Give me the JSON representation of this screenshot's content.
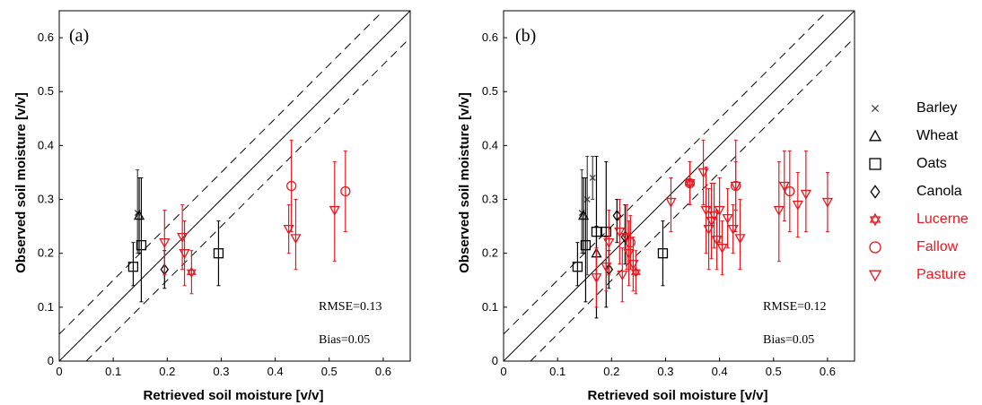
{
  "chart_data": [
    {
      "panel_label": "(a)",
      "type": "scatter",
      "xlabel": "Retrieved soil moisture [v/v]",
      "ylabel": "Observed soil moisture [v/v]",
      "xlim": [
        0,
        0.65
      ],
      "ylim": [
        0,
        0.65
      ],
      "xticks": [
        "0",
        "0.1",
        "0.2",
        "0.3",
        "0.4",
        "0.5",
        "0.6"
      ],
      "yticks": [
        "0",
        "0.1",
        "0.2",
        "0.3",
        "0.4",
        "0.5",
        "0.6"
      ],
      "grid": false,
      "reference_lines": [
        "1:1 line (solid)",
        "±0.05 (dashed)"
      ],
      "rmse_text": "RMSE=0.13",
      "bias_text": "Bias=0.05",
      "series": [
        {
          "name": "Barley",
          "points": [
            {
              "x": 0.145,
              "y": 0.275,
              "lo": 0.2,
              "hi": 0.355
            }
          ]
        },
        {
          "name": "Wheat",
          "points": [
            {
              "x": 0.148,
              "y": 0.27,
              "lo": 0.2,
              "hi": 0.34
            }
          ]
        },
        {
          "name": "Oats",
          "points": [
            {
              "x": 0.137,
              "y": 0.175,
              "lo": 0.14,
              "hi": 0.22
            },
            {
              "x": 0.152,
              "y": 0.215,
              "lo": 0.11,
              "hi": 0.34
            },
            {
              "x": 0.295,
              "y": 0.2,
              "lo": 0.14,
              "hi": 0.26
            }
          ]
        },
        {
          "name": "Canola",
          "points": [
            {
              "x": 0.195,
              "y": 0.17,
              "lo": 0.135,
              "hi": 0.205
            }
          ]
        },
        {
          "name": "Lucerne",
          "points": [
            {
              "x": 0.245,
              "y": 0.165,
              "lo": 0.125,
              "hi": 0.205
            }
          ]
        },
        {
          "name": "Fallow",
          "points": [
            {
              "x": 0.43,
              "y": 0.325,
              "lo": 0.24,
              "hi": 0.41
            },
            {
              "x": 0.53,
              "y": 0.315,
              "lo": 0.24,
              "hi": 0.39
            }
          ]
        },
        {
          "name": "Pasture",
          "points": [
            {
              "x": 0.195,
              "y": 0.22,
              "lo": 0.16,
              "hi": 0.28
            },
            {
              "x": 0.228,
              "y": 0.23,
              "lo": 0.17,
              "hi": 0.29
            },
            {
              "x": 0.232,
              "y": 0.2,
              "lo": 0.14,
              "hi": 0.26
            },
            {
              "x": 0.425,
              "y": 0.245,
              "lo": 0.2,
              "hi": 0.29
            },
            {
              "x": 0.438,
              "y": 0.228,
              "lo": 0.17,
              "hi": 0.3
            },
            {
              "x": 0.51,
              "y": 0.28,
              "lo": 0.185,
              "hi": 0.37
            }
          ]
        }
      ]
    },
    {
      "panel_label": "(b)",
      "type": "scatter",
      "xlabel": "Retrieved soil moisture [v/v]",
      "ylabel": "Observed soil moisture [v/v]",
      "xlim": [
        0,
        0.65
      ],
      "ylim": [
        0,
        0.65
      ],
      "xticks": [
        "0",
        "0.1",
        "0.2",
        "0.3",
        "0.4",
        "0.5",
        "0.6"
      ],
      "yticks": [
        "0",
        "0.1",
        "0.2",
        "0.3",
        "0.4",
        "0.5",
        "0.6"
      ],
      "grid": false,
      "reference_lines": [
        "1:1 line (solid)",
        "±0.05 (dashed)"
      ],
      "rmse_text": "RMSE=0.12",
      "bias_text": "Bias=0.05",
      "series": [
        {
          "name": "Barley",
          "points": [
            {
              "x": 0.145,
              "y": 0.275,
              "lo": 0.2,
              "hi": 0.355
            },
            {
              "x": 0.165,
              "y": 0.34,
              "lo": 0.3,
              "hi": 0.38
            },
            {
              "x": 0.155,
              "y": 0.3,
              "lo": 0.16,
              "hi": 0.38
            }
          ]
        },
        {
          "name": "Wheat",
          "points": [
            {
              "x": 0.148,
              "y": 0.27,
              "lo": 0.2,
              "hi": 0.34
            },
            {
              "x": 0.172,
              "y": 0.2,
              "lo": 0.15,
              "hi": 0.25
            }
          ]
        },
        {
          "name": "Oats",
          "points": [
            {
              "x": 0.137,
              "y": 0.175,
              "lo": 0.14,
              "hi": 0.22
            },
            {
              "x": 0.152,
              "y": 0.215,
              "lo": 0.11,
              "hi": 0.34
            },
            {
              "x": 0.172,
              "y": 0.24,
              "lo": 0.08,
              "hi": 0.38
            },
            {
              "x": 0.19,
              "y": 0.24,
              "lo": 0.1,
              "hi": 0.37
            },
            {
              "x": 0.295,
              "y": 0.2,
              "lo": 0.14,
              "hi": 0.26
            }
          ]
        },
        {
          "name": "Canola",
          "points": [
            {
              "x": 0.195,
              "y": 0.17,
              "lo": 0.135,
              "hi": 0.205
            },
            {
              "x": 0.21,
              "y": 0.27,
              "lo": 0.22,
              "hi": 0.3
            },
            {
              "x": 0.225,
              "y": 0.23,
              "lo": 0.18,
              "hi": 0.29
            }
          ]
        },
        {
          "name": "Lucerne",
          "points": [
            {
              "x": 0.245,
              "y": 0.165,
              "lo": 0.125,
              "hi": 0.205
            },
            {
              "x": 0.345,
              "y": 0.33,
              "lo": 0.29,
              "hi": 0.37
            }
          ]
        },
        {
          "name": "Fallow",
          "points": [
            {
              "x": 0.345,
              "y": 0.33,
              "lo": 0.29,
              "hi": 0.37
            },
            {
              "x": 0.43,
              "y": 0.325,
              "lo": 0.24,
              "hi": 0.41
            },
            {
              "x": 0.53,
              "y": 0.315,
              "lo": 0.24,
              "hi": 0.39
            },
            {
              "x": 0.235,
              "y": 0.22,
              "lo": 0.17,
              "hi": 0.27
            }
          ]
        },
        {
          "name": "Pasture",
          "points": [
            {
              "x": 0.172,
              "y": 0.155,
              "lo": 0.1,
              "hi": 0.21
            },
            {
              "x": 0.19,
              "y": 0.175,
              "lo": 0.13,
              "hi": 0.23
            },
            {
              "x": 0.195,
              "y": 0.22,
              "lo": 0.16,
              "hi": 0.28
            },
            {
              "x": 0.215,
              "y": 0.24,
              "lo": 0.18,
              "hi": 0.3
            },
            {
              "x": 0.22,
              "y": 0.16,
              "lo": 0.11,
              "hi": 0.21
            },
            {
              "x": 0.228,
              "y": 0.23,
              "lo": 0.17,
              "hi": 0.29
            },
            {
              "x": 0.232,
              "y": 0.2,
              "lo": 0.14,
              "hi": 0.26
            },
            {
              "x": 0.24,
              "y": 0.18,
              "lo": 0.13,
              "hi": 0.23
            },
            {
              "x": 0.31,
              "y": 0.295,
              "lo": 0.24,
              "hi": 0.34
            },
            {
              "x": 0.345,
              "y": 0.33,
              "lo": 0.29,
              "hi": 0.37
            },
            {
              "x": 0.37,
              "y": 0.35,
              "lo": 0.29,
              "hi": 0.41
            },
            {
              "x": 0.375,
              "y": 0.28,
              "lo": 0.2,
              "hi": 0.36
            },
            {
              "x": 0.38,
              "y": 0.245,
              "lo": 0.17,
              "hi": 0.32
            },
            {
              "x": 0.385,
              "y": 0.26,
              "lo": 0.19,
              "hi": 0.33
            },
            {
              "x": 0.39,
              "y": 0.27,
              "lo": 0.21,
              "hi": 0.33
            },
            {
              "x": 0.395,
              "y": 0.225,
              "lo": 0.17,
              "hi": 0.28
            },
            {
              "x": 0.4,
              "y": 0.28,
              "lo": 0.22,
              "hi": 0.34
            },
            {
              "x": 0.405,
              "y": 0.21,
              "lo": 0.16,
              "hi": 0.26
            },
            {
              "x": 0.415,
              "y": 0.265,
              "lo": 0.21,
              "hi": 0.32
            },
            {
              "x": 0.425,
              "y": 0.245,
              "lo": 0.2,
              "hi": 0.29
            },
            {
              "x": 0.43,
              "y": 0.325,
              "lo": 0.28,
              "hi": 0.37
            },
            {
              "x": 0.438,
              "y": 0.228,
              "lo": 0.17,
              "hi": 0.3
            },
            {
              "x": 0.51,
              "y": 0.28,
              "lo": 0.185,
              "hi": 0.37
            },
            {
              "x": 0.52,
              "y": 0.325,
              "lo": 0.26,
              "hi": 0.39
            },
            {
              "x": 0.545,
              "y": 0.29,
              "lo": 0.23,
              "hi": 0.35
            },
            {
              "x": 0.56,
              "y": 0.31,
              "lo": 0.24,
              "hi": 0.39
            },
            {
              "x": 0.6,
              "y": 0.295,
              "lo": 0.24,
              "hi": 0.35
            }
          ]
        }
      ]
    }
  ],
  "legend": {
    "items": [
      {
        "label": "Barley",
        "marker": "x-mark",
        "color": "#404040"
      },
      {
        "label": "Wheat",
        "marker": "triangle-up",
        "color": "#000000"
      },
      {
        "label": "Oats",
        "marker": "square",
        "color": "#000000"
      },
      {
        "label": "Canola",
        "marker": "diamond",
        "color": "#000000"
      },
      {
        "label": "Lucerne",
        "marker": "hexagram",
        "color": "#e8171e"
      },
      {
        "label": "Fallow",
        "marker": "circle",
        "color": "#e8171e"
      },
      {
        "label": "Pasture",
        "marker": "triangle-down",
        "color": "#e8171e"
      }
    ]
  },
  "colors": {
    "black": "#000000",
    "red": "#e8171e",
    "barley": "#404040"
  }
}
